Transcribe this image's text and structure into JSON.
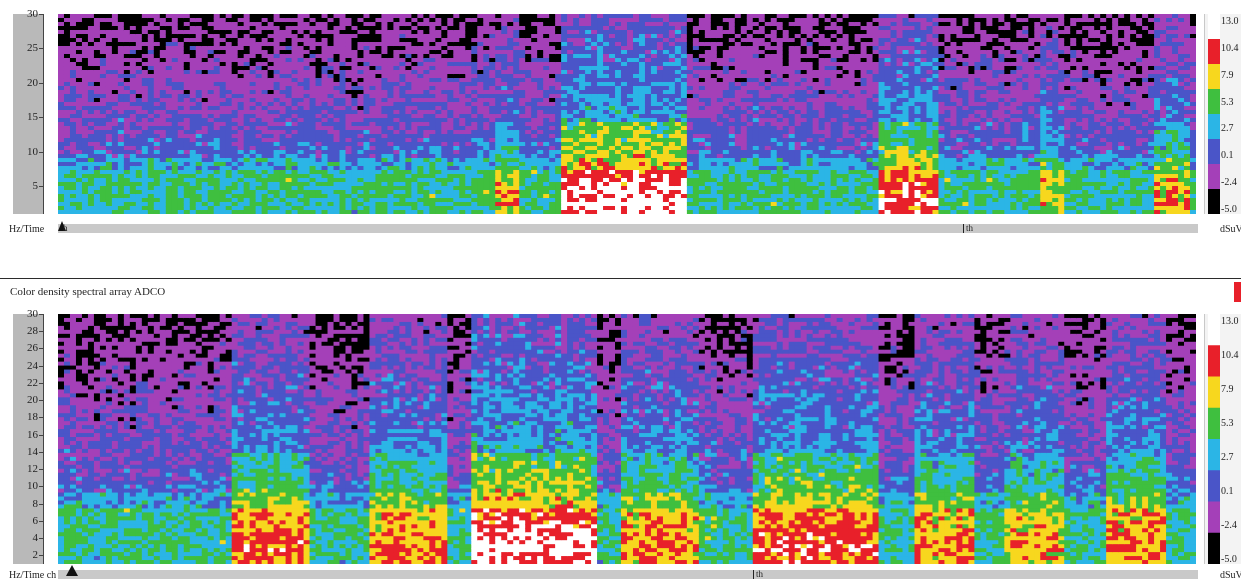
{
  "chart_data": [
    {
      "type": "heatmap",
      "title": "",
      "ylabel": "Hz/Time",
      "y_ticks": [
        "30",
        "25",
        "20",
        "15",
        "10",
        "5"
      ],
      "y_tick_values": [
        30,
        25,
        20,
        15,
        10,
        5
      ],
      "ylim": [
        1,
        30
      ],
      "colorbar": {
        "labels": [
          "13.0",
          "10.4",
          "7.9",
          "5.3",
          "2.7",
          "0.1",
          "-2.4",
          "-5.0"
        ],
        "values": [
          13.0,
          10.4,
          7.9,
          5.3,
          2.7,
          0.1,
          -2.4,
          -5.0
        ],
        "unit": "dSuV"
      },
      "time_markers": [
        "h",
        "th"
      ],
      "bursts": [
        [
          0.38,
          0.4,
          0.5
        ],
        [
          0.44,
          0.55,
          1.0
        ],
        [
          0.72,
          0.77,
          0.8
        ],
        [
          0.86,
          0.88,
          0.4
        ],
        [
          0.96,
          0.99,
          0.5
        ]
      ]
    },
    {
      "type": "heatmap",
      "title": "Color density spectral array ADCO",
      "ylabel": "Hz/Time",
      "y_ticks": [
        "30",
        "28",
        "26",
        "24",
        "22",
        "20",
        "18",
        "16",
        "14",
        "12",
        "10",
        "8",
        "6",
        "4",
        "2"
      ],
      "y_tick_values": [
        30,
        28,
        26,
        24,
        22,
        20,
        18,
        16,
        14,
        12,
        10,
        8,
        6,
        4,
        2
      ],
      "ylim": [
        1,
        30
      ],
      "colorbar": {
        "labels": [
          "13.0",
          "10.4",
          "7.9",
          "5.3",
          "2.7",
          "0.1",
          "-2.4",
          "-5.0"
        ],
        "values": [
          13.0,
          10.4,
          7.9,
          5.3,
          2.7,
          0.1,
          -2.4,
          -5.0
        ],
        "unit": "dSuV"
      },
      "time_markers": [
        "ch",
        "th"
      ],
      "bursts": [
        [
          0.15,
          0.22,
          0.7
        ],
        [
          0.27,
          0.34,
          0.6
        ],
        [
          0.36,
          0.47,
          1.0
        ],
        [
          0.49,
          0.56,
          0.6
        ],
        [
          0.61,
          0.72,
          0.8
        ],
        [
          0.75,
          0.8,
          0.6
        ],
        [
          0.83,
          0.88,
          0.5
        ],
        [
          0.92,
          0.97,
          0.6
        ]
      ]
    }
  ],
  "colors": {
    "scale_top_to_bottom": [
      "#ffffff",
      "#e8202a",
      "#f7d71e",
      "#3fbf3f",
      "#2bb5e6",
      "#4a55c8",
      "#a440b8",
      "#000000"
    ],
    "status_marker": "#e8202a"
  }
}
